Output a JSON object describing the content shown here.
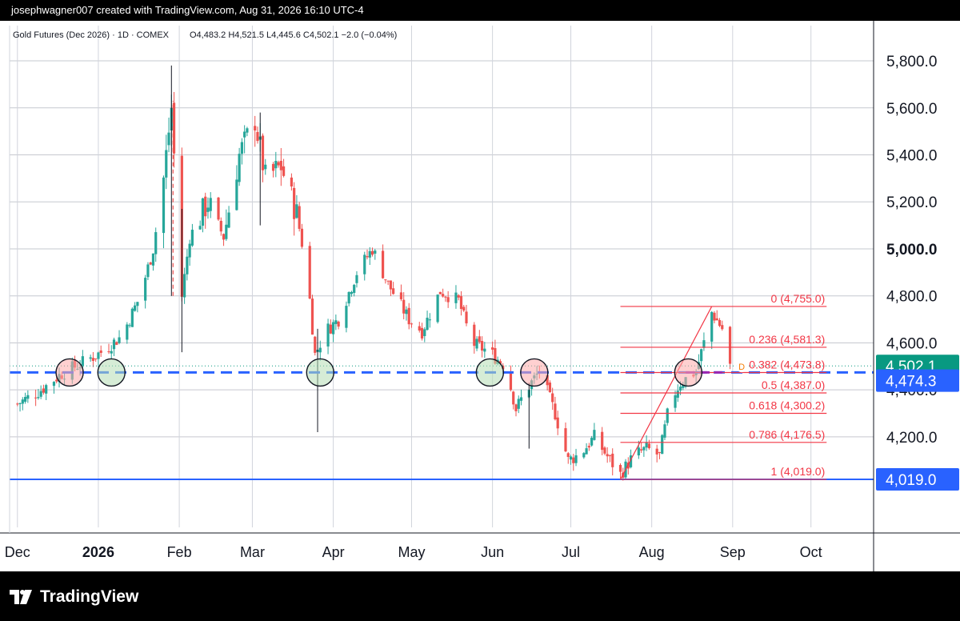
{
  "top_bar": {
    "credit": "josephwagner007 created with TradingView.com, Aug 31, 2026 16:10 UTC-4"
  },
  "legend": {
    "symbol": "Gold Futures (Dec 2026) · 1D · COMEX",
    "ohlc": "O4,483.2  H4,521.5  L4,445.6  C4,502.1  −2.0 (−0.04%)"
  },
  "brand": {
    "name": "TradingView"
  },
  "colors": {
    "up": "#26a69a",
    "down": "#ef5350",
    "blue_line": "#2962ff",
    "fib": "#f23645",
    "price_badge": "#089981"
  },
  "chart_data": {
    "type": "candlestick",
    "ylim": [
      3900,
      5950
    ],
    "yticks": [
      4200,
      4400,
      4600,
      4800,
      5000,
      5200,
      5400,
      5600,
      5800
    ],
    "ytick_labels": [
      "4,200.0",
      "4,400.0",
      "4,600.0",
      "4,800.0",
      "5,000.0",
      "5,200.0",
      "5,400.0",
      "5,600.0",
      "5,800.0"
    ],
    "bold_tick": 5000,
    "x_months": [
      {
        "label": "Dec",
        "date": "2025-12-01"
      },
      {
        "label": "2026",
        "date": "2026-01-01",
        "bold": true
      },
      {
        "label": "Feb",
        "date": "2026-02-01"
      },
      {
        "label": "Mar",
        "date": "2026-03-01"
      },
      {
        "label": "Apr",
        "date": "2026-04-01"
      },
      {
        "label": "May",
        "date": "2026-05-01"
      },
      {
        "label": "Jun",
        "date": "2026-06-01"
      },
      {
        "label": "Jul",
        "date": "2026-07-01"
      },
      {
        "label": "Aug",
        "date": "2026-08-01"
      },
      {
        "label": "Sep",
        "date": "2026-09-01"
      },
      {
        "label": "Oct",
        "date": "2026-10-01"
      }
    ],
    "price_path": [
      [
        "2025-12-01",
        4340
      ],
      [
        "2025-12-10",
        4400
      ],
      [
        "2025-12-18",
        4470
      ],
      [
        "2025-12-25",
        4510
      ],
      [
        "2026-01-02",
        4560
      ],
      [
        "2026-01-10",
        4630
      ],
      [
        "2026-01-17",
        4800
      ],
      [
        "2026-01-22",
        5000
      ],
      [
        "2026-01-26",
        5300
      ],
      [
        "2026-01-29",
        5600
      ],
      [
        "2026-02-02",
        4800
      ],
      [
        "2026-02-05",
        5050
      ],
      [
        "2026-02-12",
        5200
      ],
      [
        "2026-02-18",
        5050
      ],
      [
        "2026-02-24",
        5400
      ],
      [
        "2026-03-02",
        5550
      ],
      [
        "2026-03-06",
        5300
      ],
      [
        "2026-03-12",
        5350
      ],
      [
        "2026-03-18",
        5150
      ],
      [
        "2026-03-22",
        4900
      ],
      [
        "2026-03-25",
        4550
      ],
      [
        "2026-03-29",
        4650
      ],
      [
        "2026-04-03",
        4700
      ],
      [
        "2026-04-10",
        4900
      ],
      [
        "2026-04-16",
        5000
      ],
      [
        "2026-04-22",
        4850
      ],
      [
        "2026-04-30",
        4700
      ],
      [
        "2026-05-05",
        4650
      ],
      [
        "2026-05-12",
        4820
      ],
      [
        "2026-05-19",
        4780
      ],
      [
        "2026-05-24",
        4600
      ],
      [
        "2026-05-31",
        4560
      ],
      [
        "2026-06-06",
        4500
      ],
      [
        "2026-06-10",
        4320
      ],
      [
        "2026-06-14",
        4400
      ],
      [
        "2026-06-19",
        4480
      ],
      [
        "2026-06-25",
        4300
      ],
      [
        "2026-06-30",
        4100
      ],
      [
        "2026-07-05",
        4130
      ],
      [
        "2026-07-10",
        4200
      ],
      [
        "2026-07-16",
        4100
      ],
      [
        "2026-07-20",
        4040
      ],
      [
        "2026-07-25",
        4120
      ],
      [
        "2026-07-30",
        4150
      ],
      [
        "2026-08-04",
        4120
      ],
      [
        "2026-08-08",
        4350
      ],
      [
        "2026-08-12",
        4430
      ],
      [
        "2026-08-18",
        4480
      ],
      [
        "2026-08-21",
        4600
      ],
      [
        "2026-08-24",
        4730
      ],
      [
        "2026-08-28",
        4660
      ],
      [
        "2026-08-31",
        4502
      ]
    ],
    "spikes": [
      {
        "date": "2026-01-29",
        "high": 5780,
        "low": 4800
      },
      {
        "date": "2026-02-02",
        "high": 5170,
        "low": 4560
      },
      {
        "date": "2026-03-04",
        "high": 5580,
        "low": 5100
      },
      {
        "date": "2026-03-26",
        "high": 4660,
        "low": 4220
      },
      {
        "date": "2026-06-15",
        "high": 4430,
        "low": 4150
      }
    ],
    "feb_dashed_marker": {
      "date": "2026-01-29",
      "from": 4800,
      "to": 5630
    },
    "levels": {
      "support_line": {
        "value": 4019.0,
        "label": "4,019.0"
      },
      "dashed_level": {
        "value": 4474.3,
        "label": "4,474.3"
      },
      "last_price": {
        "value": 4502.1,
        "label": "4,502.1"
      }
    },
    "circles": [
      {
        "date": "2025-12-21",
        "value": 4474,
        "kind": "red"
      },
      {
        "date": "2026-01-06",
        "value": 4474,
        "kind": "green"
      },
      {
        "date": "2026-03-27",
        "value": 4474,
        "kind": "green"
      },
      {
        "date": "2026-05-31",
        "value": 4474,
        "kind": "green"
      },
      {
        "date": "2026-06-17",
        "value": 4474,
        "kind": "red"
      },
      {
        "date": "2026-08-15",
        "value": 4474,
        "kind": "red"
      }
    ],
    "fibonacci": {
      "from_date": "2026-07-20",
      "to_date": "2026-10-07",
      "low": 4019.0,
      "high": 4755.0,
      "levels": [
        {
          "ratio": "0",
          "value": 4755.0,
          "label": "0 (4,755.0)"
        },
        {
          "ratio": "0.236",
          "value": 4581.3,
          "label": "0.236 (4,581.3)"
        },
        {
          "ratio": "0.382",
          "value": 4473.8,
          "label": "0.382 (4,473.8)"
        },
        {
          "ratio": "0.5",
          "value": 4387.0,
          "label": "0.5 (4,387.0)"
        },
        {
          "ratio": "0.618",
          "value": 4300.2,
          "label": "0.618 (4,300.2)"
        },
        {
          "ratio": "0.786",
          "value": 4176.5,
          "label": "0.786 (4,176.5)"
        },
        {
          "ratio": "1",
          "value": 4019.0,
          "label": "1 (4,019.0)"
        }
      ],
      "trend_from": {
        "date": "2026-07-20",
        "value": 4019
      },
      "trend_to": {
        "date": "2026-08-24",
        "value": 4755
      }
    },
    "dividend_marker": {
      "date": "2026-09-02",
      "value": 4502,
      "label": "D"
    }
  }
}
